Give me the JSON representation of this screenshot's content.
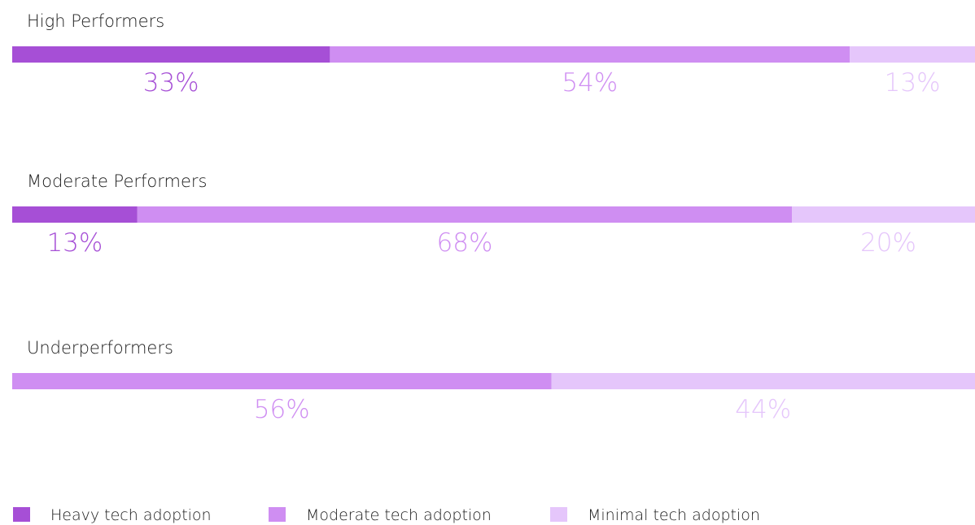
{
  "chart_data": {
    "type": "bar",
    "orientation": "horizontal",
    "stacked": true,
    "percent_stacked": true,
    "grid": false,
    "legend_position": "bottom",
    "title": "",
    "xlabel": "",
    "ylabel": "",
    "xlim": [
      0,
      100
    ],
    "categories": [
      "High Performers",
      "Moderate Performers",
      "Underperformers"
    ],
    "series": [
      {
        "name": "Heavy tech adoption",
        "values": [
          33,
          13,
          0
        ],
        "labels": [
          "33%",
          "13%",
          ""
        ],
        "color": "#a64fd6"
      },
      {
        "name": "Moderate tech adoption",
        "values": [
          54,
          68,
          56
        ],
        "labels": [
          "54%",
          "68%",
          "56%"
        ],
        "color": "#cf8ef2"
      },
      {
        "name": "Minimal tech adoption",
        "values": [
          13,
          20,
          44
        ],
        "labels": [
          "13%",
          "20%",
          "44%"
        ],
        "color": "#e5c6fb"
      }
    ]
  }
}
